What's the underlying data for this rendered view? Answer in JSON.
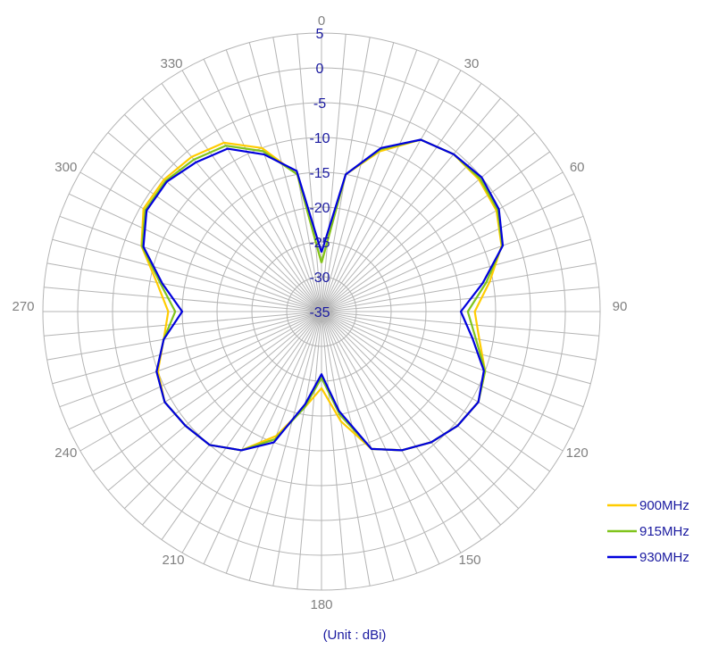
{
  "chart_data": {
    "type": "polar-line",
    "title": "",
    "unit_label": "(Unit : dBi)",
    "r_ticks": [
      5,
      0,
      -5,
      -10,
      -15,
      -20,
      -25,
      -30,
      -35
    ],
    "r_range": [
      -35,
      5
    ],
    "angle_ticks": [
      0,
      30,
      60,
      90,
      120,
      150,
      180,
      210,
      240,
      270,
      300,
      330
    ],
    "angle_step": 5,
    "theta": [
      0,
      10,
      20,
      30,
      40,
      50,
      60,
      70,
      80,
      90,
      100,
      110,
      120,
      130,
      140,
      150,
      160,
      170,
      180,
      190,
      200,
      210,
      220,
      230,
      240,
      250,
      260,
      270,
      280,
      290,
      300,
      310,
      320,
      330,
      340,
      350,
      360
    ],
    "legend_position": "bottom-right",
    "series": [
      {
        "name": "900MHz",
        "color": "#ffcc00",
        "values": [
          -28,
          -15,
          -10.5,
          -6.5,
          -5.5,
          -5.5,
          -6,
          -7.5,
          -10.5,
          -13,
          -12,
          -10,
          -9,
          -9.5,
          -10.5,
          -12,
          -14,
          -19,
          -24,
          -21,
          -16,
          -12,
          -10,
          -9.5,
          -9,
          -10,
          -12,
          -13,
          -11,
          -7.5,
          -5.5,
          -5.5,
          -6,
          -7,
          -10,
          -15,
          -28
        ]
      },
      {
        "name": "915MHz",
        "color": "#80c41c",
        "values": [
          -28,
          -15,
          -10.2,
          -6.5,
          -5.5,
          -5.3,
          -5.8,
          -7.4,
          -11,
          -14,
          -12.5,
          -10,
          -9,
          -9.5,
          -10.5,
          -12,
          -14,
          -20,
          -25.5,
          -21,
          -15.5,
          -12,
          -10,
          -9.5,
          -9,
          -9.8,
          -12,
          -14,
          -11.5,
          -7.6,
          -5.8,
          -5.8,
          -6.5,
          -7.5,
          -10.5,
          -15,
          -28
        ]
      },
      {
        "name": "930MHz",
        "color": "#0000dd",
        "values": [
          -26.5,
          -15,
          -10,
          -6.5,
          -5.5,
          -5,
          -5.6,
          -7.3,
          -11.5,
          -15,
          -13,
          -10.2,
          -9,
          -9.5,
          -10.5,
          -12,
          -14,
          -20.5,
          -26,
          -21.5,
          -15,
          -12,
          -10,
          -9.5,
          -9,
          -9.8,
          -12,
          -15,
          -11.8,
          -7.8,
          -6,
          -6,
          -7,
          -8,
          -11,
          -14.5,
          -26.5
        ]
      }
    ]
  }
}
